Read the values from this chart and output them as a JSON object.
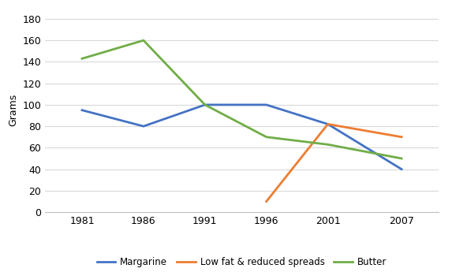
{
  "years": [
    1981,
    1986,
    1991,
    1996,
    2001,
    2007
  ],
  "margarine": [
    95,
    80,
    100,
    100,
    82,
    40
  ],
  "low_fat_years": [
    1996,
    2001,
    2007
  ],
  "low_fat": [
    10,
    82,
    70
  ],
  "butter": [
    143,
    160,
    100,
    70,
    63,
    50
  ],
  "ylabel": "Grams",
  "ylim": [
    0,
    190
  ],
  "yticks": [
    0,
    20,
    40,
    60,
    80,
    100,
    120,
    140,
    160,
    180
  ],
  "xticks": [
    1981,
    1986,
    1991,
    1996,
    2001,
    2007
  ],
  "margarine_color": "#4472C4",
  "low_fat_color": "#ED7D31",
  "butter_color": "#70AD47",
  "legend_labels": [
    "Margarine",
    "Low fat & reduced spreads",
    "Butter"
  ],
  "background_color": "#FFFFFF",
  "grid_color": "#D9D9D9"
}
